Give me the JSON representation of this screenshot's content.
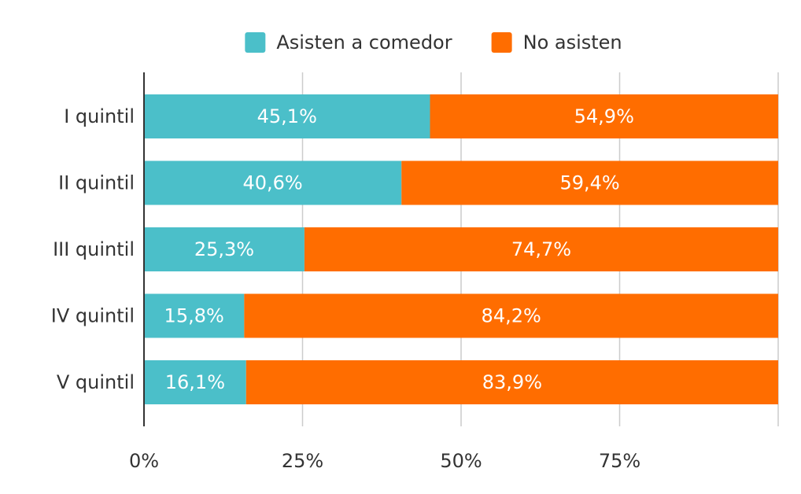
{
  "chart_data": {
    "type": "bar",
    "orientation": "horizontal",
    "stacked": true,
    "percent": true,
    "categories": [
      "I quintil",
      "II quintil",
      "III quintil",
      "IV quintil",
      "V quintil"
    ],
    "series": [
      {
        "name": "Asisten a comedor",
        "color": "#4bbfc9",
        "values": [
          45.1,
          40.6,
          25.3,
          15.8,
          16.1
        ],
        "labels": [
          "45,1%",
          "40,6%",
          "25,3%",
          "15,8%",
          "16,1%"
        ]
      },
      {
        "name": "No asisten",
        "color": "#ff6d00",
        "values": [
          54.9,
          59.4,
          74.7,
          84.2,
          83.9
        ],
        "labels": [
          "54,9%",
          "59,4%",
          "74,7%",
          "84,2%",
          "83,9%"
        ]
      }
    ],
    "xlim": [
      0,
      100
    ],
    "x_ticks": [
      0,
      25,
      50,
      75
    ],
    "x_tick_labels": [
      "0%",
      "25%",
      "50%",
      "75%"
    ],
    "grid": true,
    "legend_position": "top-center",
    "gridline_color": "#cccccc",
    "axis_color": "#333333"
  }
}
